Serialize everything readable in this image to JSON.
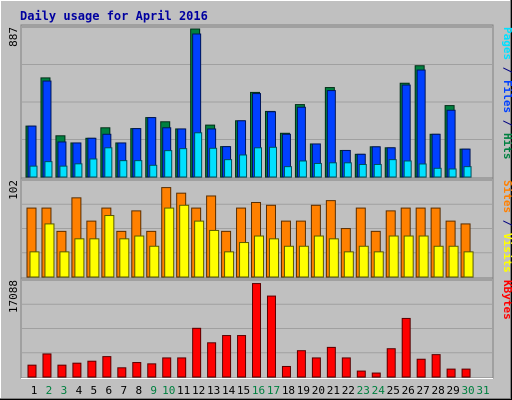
{
  "chart_data": {
    "type": "bar",
    "title": "Daily usage for April 2016",
    "categories": [
      "1",
      "2",
      "3",
      "4",
      "5",
      "6",
      "7",
      "8",
      "9",
      "10",
      "11",
      "12",
      "13",
      "14",
      "15",
      "16",
      "17",
      "18",
      "19",
      "20",
      "21",
      "22",
      "23",
      "24",
      "25",
      "26",
      "27",
      "28",
      "29",
      "30",
      "31"
    ],
    "weekend_days": [
      "2",
      "3",
      "9",
      "10",
      "16",
      "17",
      "23",
      "24",
      "30",
      "31"
    ],
    "panels": [
      {
        "id": "hits-files-pages",
        "ymax": 887,
        "ymax_label": "887",
        "right_labels": [
          {
            "text": "Pages",
            "color": "#00e0ff"
          },
          {
            "text": " / ",
            "color": "#000080"
          },
          {
            "text": "Files",
            "color": "#0040ff"
          },
          {
            "text": " / ",
            "color": "#000080"
          },
          {
            "text": "Hits",
            "color": "#008040"
          }
        ],
        "series": [
          {
            "name": "Hits",
            "color": "#008040",
            "values": [
              305,
              594,
              247,
              204,
              232,
              295,
              204,
              290,
              356,
              331,
              288,
              887,
              311,
              182,
              337,
              507,
              393,
              262,
              434,
              198,
              536,
              159,
              136,
              181,
              175,
              562,
              667,
              256,
              428,
              167,
              0
            ]
          },
          {
            "name": "Files",
            "color": "#0040ff",
            "values": [
              305,
              575,
              210,
              204,
              232,
              256,
              204,
              290,
              356,
              295,
              288,
              857,
              288,
              182,
              337,
              500,
              391,
              256,
              418,
              198,
              518,
              159,
              136,
              181,
              175,
              551,
              641,
              256,
              400,
              167,
              0
            ]
          },
          {
            "name": "Pages",
            "color": "#00e0ff",
            "values": [
              65,
              92,
              65,
              79,
              108,
              175,
              98,
              98,
              70,
              158,
              170,
              265,
              172,
              104,
              132,
              175,
              178,
              62,
              96,
              81,
              85,
              85,
              75,
              75,
              104,
              96,
              78,
              52,
              48,
              62,
              0
            ]
          }
        ]
      },
      {
        "id": "visits-sites",
        "ymax": 102,
        "ymax_label": "102",
        "right_labels": [
          {
            "text": "Sites",
            "color": "#ff8000"
          },
          {
            "text": " / ",
            "color": "#000080"
          },
          {
            "text": "Visits",
            "color": "#ffff00"
          }
        ],
        "series": [
          {
            "name": "Sites",
            "color": "#ff8000",
            "values": [
              74,
              74,
              49,
              85,
              60,
              74,
              49,
              71,
              49,
              96,
              90,
              74,
              87,
              49,
              74,
              80,
              77,
              60,
              60,
              77,
              82,
              52,
              74,
              49,
              71,
              74,
              74,
              74,
              60,
              57,
              0
            ]
          },
          {
            "name": "Visits",
            "color": "#ffff00",
            "values": [
              27,
              57,
              27,
              41,
              41,
              66,
              41,
              44,
              33,
              74,
              77,
              60,
              50,
              27,
              37,
              44,
              41,
              33,
              33,
              44,
              41,
              27,
              33,
              27,
              44,
              44,
              44,
              33,
              33,
              27,
              0
            ]
          }
        ]
      },
      {
        "id": "kbytes",
        "ymax": 17088,
        "ymax_label": "17088",
        "right_labels": [
          {
            "text": "KBytes",
            "color": "#ff0000"
          }
        ],
        "series": [
          {
            "name": "KBytes",
            "color": "#ff0000",
            "values": [
              2130,
              4144,
              2130,
              2485,
              2840,
              3669,
              1657,
              2603,
              2367,
              3432,
              3432,
              8758,
              6155,
              7457,
              7457,
              16806,
              14557,
              1894,
              4734,
              3432,
              5326,
              3432,
              1065,
              710,
              5089,
              10534,
              3195,
              4024,
              1420,
              1420,
              0
            ]
          }
        ]
      }
    ]
  }
}
